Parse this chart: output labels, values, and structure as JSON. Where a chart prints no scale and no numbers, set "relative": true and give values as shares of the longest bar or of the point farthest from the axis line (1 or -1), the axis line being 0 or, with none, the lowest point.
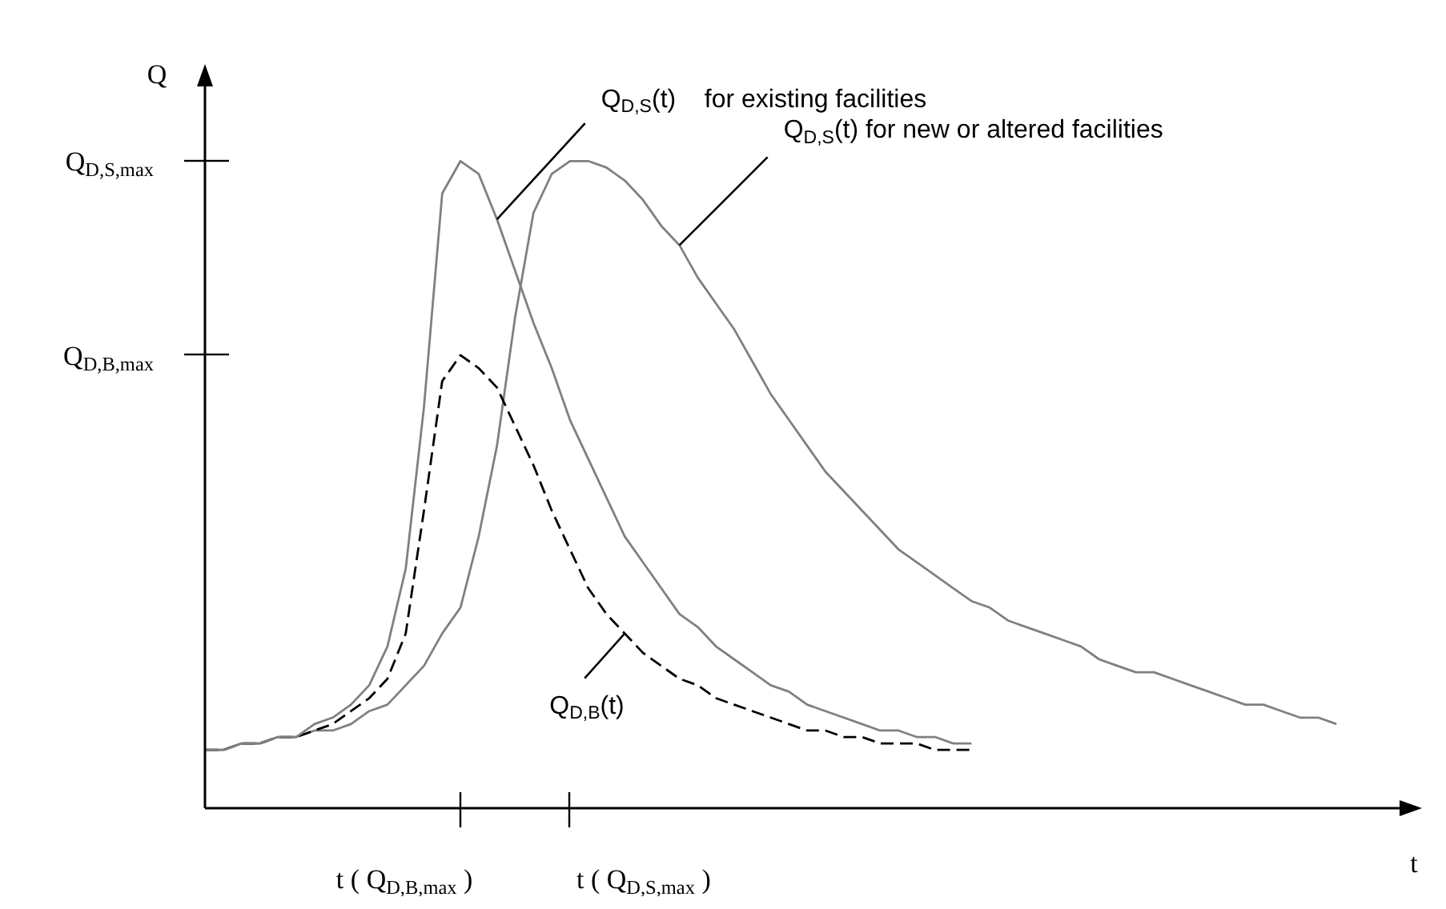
{
  "chart_data": {
    "type": "line",
    "relative": true,
    "xlabel": "t",
    "ylabel": "Q",
    "marker": "none",
    "categories": [
      null,
      null,
      null,
      null,
      null,
      null,
      null,
      null,
      null,
      null,
      null,
      null,
      null,
      null,
      null,
      null,
      null,
      null,
      null,
      null,
      null,
      null,
      null,
      null,
      null,
      null,
      null,
      null,
      null,
      null,
      null,
      null,
      null,
      null,
      null,
      null,
      null,
      null,
      null,
      null,
      null,
      null,
      null,
      null,
      null,
      null,
      null,
      null,
      null,
      null,
      null,
      null,
      null,
      null,
      null,
      null,
      null,
      null,
      null,
      null,
      null,
      null,
      null,
      null
    ],
    "series": [
      {
        "color": "#808080",
        "line_style": "solid",
        "values": [
          0.09,
          0.09,
          0.1,
          0.1,
          0.11,
          0.11,
          0.13,
          0.14,
          0.16,
          0.19,
          0.25,
          0.37,
          0.62,
          0.95,
          1,
          0.98,
          0.91,
          0.83,
          0.75,
          0.68,
          0.6,
          0.54,
          0.48,
          0.42,
          0.38,
          0.34,
          0.3,
          0.28,
          0.25,
          0.23,
          0.21,
          0.19,
          0.18,
          0.16,
          0.15,
          0.14,
          0.13,
          0.12,
          0.12,
          0.11,
          0.11,
          0.1,
          0.1,
          null,
          null,
          null,
          null,
          null,
          null,
          null,
          null,
          null,
          null,
          null,
          null,
          null,
          null,
          null,
          null,
          null,
          null,
          null,
          null,
          null
        ]
      },
      {
        "color": "#000000",
        "line_style": "dashed",
        "values": [
          0.09,
          0.09,
          0.1,
          0.1,
          0.11,
          0.11,
          0.12,
          0.13,
          0.15,
          0.17,
          0.2,
          0.27,
          0.46,
          0.66,
          0.7,
          0.68,
          0.65,
          0.59,
          0.53,
          0.46,
          0.4,
          0.34,
          0.3,
          0.27,
          0.24,
          0.22,
          0.2,
          0.19,
          0.17,
          0.16,
          0.15,
          0.14,
          0.13,
          0.12,
          0.12,
          0.11,
          0.11,
          0.1,
          0.1,
          0.1,
          0.09,
          0.09,
          0.09,
          null,
          null,
          null,
          null,
          null,
          null,
          null,
          null,
          null,
          null,
          null,
          null,
          null,
          null,
          null,
          null,
          null,
          null,
          null,
          null,
          null
        ]
      },
      {
        "color": "#808080",
        "line_style": "solid",
        "values": [
          0.09,
          0.09,
          0.1,
          0.1,
          0.11,
          0.11,
          0.12,
          0.12,
          0.13,
          0.15,
          0.16,
          0.19,
          0.22,
          0.27,
          0.31,
          0.42,
          0.56,
          0.76,
          0.92,
          0.98,
          1,
          1,
          0.99,
          0.97,
          0.94,
          0.9,
          0.87,
          0.82,
          0.78,
          0.74,
          0.69,
          0.64,
          0.6,
          0.56,
          0.52,
          0.49,
          0.46,
          0.43,
          0.4,
          0.38,
          0.36,
          0.34,
          0.32,
          0.31,
          0.29,
          0.28,
          0.27,
          0.26,
          0.25,
          0.23,
          0.22,
          0.21,
          0.21,
          0.2,
          0.19,
          0.18,
          0.17,
          0.16,
          0.16,
          0.15,
          0.14,
          0.14,
          0.13,
          null
        ]
      }
    ],
    "annotations": [
      "Q$_{D,S}$(t)    for existing facilities",
      "Q$_{D,S}$(t) for new or altered facilities",
      "Q$_{D,B}$(t)",
      "Q$_{D,S,max}$",
      "Q$_{D,B,max}$",
      "t ( Q$_{D,B,max}$ )",
      "t ( Q$_{D,S,max}$ )"
    ]
  }
}
